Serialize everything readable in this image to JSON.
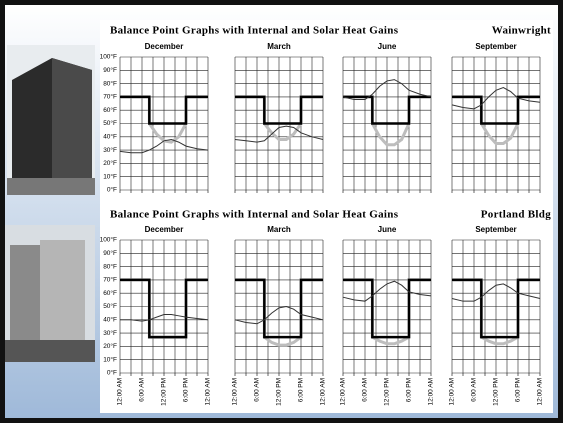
{
  "panels": [
    {
      "title": "Balance Point Graphs with Internal and Solar Heat Gains",
      "building": "Wainwright"
    },
    {
      "title": "Balance Point Graphs with Internal and Solar Heat Gains",
      "building": "Portland Bldg"
    }
  ],
  "chart_data": [
    {
      "type": "line",
      "title": "December",
      "x": [
        0,
        3,
        6,
        8,
        8,
        10,
        12,
        14,
        16,
        18,
        18,
        21,
        24
      ],
      "xlim": [
        0,
        24
      ],
      "ylim": [
        0,
        100
      ],
      "xticks": [
        0,
        3,
        6,
        9,
        12,
        15,
        18,
        21,
        24
      ],
      "yticks": [
        {
          "value": 0,
          "label": "0°F"
        },
        {
          "value": 10,
          "label": "10°F"
        },
        {
          "value": 20,
          "label": "20°F"
        },
        {
          "value": 30,
          "label": "30°F"
        },
        {
          "value": 40,
          "label": "40°F"
        },
        {
          "value": 50,
          "label": "50°F"
        },
        {
          "value": 60,
          "label": "60°F"
        },
        {
          "value": 70,
          "label": "70°F"
        },
        {
          "value": 80,
          "label": "80°F"
        },
        {
          "value": 90,
          "label": "90°F"
        },
        {
          "value": 100,
          "label": "100°F"
        }
      ],
      "series": [
        {
          "color": "#bdbdbd",
          "values": [
            70,
            70,
            70,
            70,
            50,
            42,
            37,
            36,
            40,
            50,
            70,
            70,
            70
          ]
        },
        {
          "color": "#000000",
          "values": [
            70,
            70,
            70,
            70,
            50,
            50,
            50,
            50,
            50,
            50,
            70,
            70,
            70
          ]
        },
        {
          "color": "#333333",
          "values": [
            29,
            28,
            28,
            30,
            30,
            33,
            37,
            38,
            36,
            33,
            33,
            31,
            30
          ]
        }
      ]
    },
    {
      "type": "line",
      "title": "March",
      "x": [
        0,
        3,
        6,
        8,
        8,
        10,
        12,
        14,
        16,
        18,
        18,
        21,
        24
      ],
      "xlim": [
        0,
        24
      ],
      "ylim": [
        0,
        100
      ],
      "xticks": [
        0,
        3,
        6,
        9,
        12,
        15,
        18,
        21,
        24
      ],
      "yticks": [
        0,
        10,
        20,
        30,
        40,
        50,
        60,
        70,
        80,
        90,
        100
      ],
      "series": [
        {
          "color": "#bdbdbd",
          "values": [
            70,
            70,
            70,
            70,
            50,
            43,
            38,
            38,
            42,
            50,
            70,
            70,
            70
          ]
        },
        {
          "color": "#000000",
          "values": [
            70,
            70,
            70,
            70,
            50,
            50,
            50,
            50,
            50,
            50,
            70,
            70,
            70
          ]
        },
        {
          "color": "#333333",
          "values": [
            38,
            37,
            36,
            37,
            37,
            42,
            47,
            48,
            47,
            43,
            43,
            40,
            38
          ]
        }
      ]
    },
    {
      "type": "line",
      "title": "June",
      "x": [
        0,
        3,
        6,
        8,
        8,
        10,
        12,
        14,
        16,
        18,
        18,
        21,
        24
      ],
      "xlim": [
        0,
        24
      ],
      "ylim": [
        0,
        100
      ],
      "xticks": [
        0,
        3,
        6,
        9,
        12,
        15,
        18,
        21,
        24
      ],
      "yticks": [
        0,
        10,
        20,
        30,
        40,
        50,
        60,
        70,
        80,
        90,
        100
      ],
      "series": [
        {
          "color": "#bdbdbd",
          "values": [
            70,
            70,
            70,
            70,
            50,
            40,
            34,
            34,
            38,
            50,
            70,
            70,
            70
          ]
        },
        {
          "color": "#000000",
          "values": [
            70,
            70,
            70,
            70,
            50,
            50,
            50,
            50,
            50,
            50,
            70,
            70,
            70
          ]
        },
        {
          "color": "#333333",
          "values": [
            70,
            68,
            68,
            72,
            72,
            78,
            82,
            83,
            80,
            75,
            75,
            72,
            70
          ]
        }
      ]
    },
    {
      "type": "line",
      "title": "September",
      "x": [
        0,
        3,
        6,
        8,
        8,
        10,
        12,
        14,
        16,
        18,
        18,
        21,
        24
      ],
      "xlim": [
        0,
        24
      ],
      "ylim": [
        0,
        100
      ],
      "xticks": [
        0,
        3,
        6,
        9,
        12,
        15,
        18,
        21,
        24
      ],
      "yticks": [
        0,
        10,
        20,
        30,
        40,
        50,
        60,
        70,
        80,
        90,
        100
      ],
      "series": [
        {
          "color": "#bdbdbd",
          "values": [
            70,
            70,
            70,
            70,
            50,
            41,
            35,
            35,
            39,
            50,
            70,
            70,
            70
          ]
        },
        {
          "color": "#000000",
          "values": [
            70,
            70,
            70,
            70,
            50,
            50,
            50,
            50,
            50,
            50,
            70,
            70,
            70
          ]
        },
        {
          "color": "#333333",
          "values": [
            64,
            62,
            61,
            64,
            64,
            70,
            75,
            77,
            74,
            69,
            69,
            67,
            66
          ]
        }
      ]
    },
    {
      "type": "line",
      "title": "December",
      "x": [
        0,
        3,
        6,
        8,
        8,
        10,
        12,
        14,
        16,
        18,
        18,
        21,
        24
      ],
      "xlim": [
        0,
        24
      ],
      "ylim": [
        0,
        100
      ],
      "xticks": [
        {
          "value": 0,
          "label": "12:00 AM"
        },
        3,
        {
          "value": 6,
          "label": "6:00 AM"
        },
        9,
        {
          "value": 12,
          "label": "12:00 PM"
        },
        15,
        {
          "value": 18,
          "label": "6:00 PM"
        },
        21,
        {
          "value": 24,
          "label": "12:00 AM"
        }
      ],
      "yticks": [
        {
          "value": 0,
          "label": "0°F"
        },
        {
          "value": 10,
          "label": "10°F"
        },
        {
          "value": 20,
          "label": "20°F"
        },
        {
          "value": 30,
          "label": "30°F"
        },
        {
          "value": 40,
          "label": "40°F"
        },
        {
          "value": 50,
          "label": "50°F"
        },
        {
          "value": 60,
          "label": "60°F"
        },
        {
          "value": 70,
          "label": "70°F"
        },
        {
          "value": 80,
          "label": "80°F"
        },
        {
          "value": 90,
          "label": "90°F"
        },
        {
          "value": 100,
          "label": "100°F"
        }
      ],
      "series": [
        {
          "color": "#bdbdbd",
          "values": [
            70,
            70,
            70,
            70,
            27,
            27,
            27,
            27,
            27,
            27,
            70,
            70,
            70
          ]
        },
        {
          "color": "#000000",
          "values": [
            70,
            70,
            70,
            70,
            27,
            27,
            27,
            27,
            27,
            27,
            70,
            70,
            70
          ]
        },
        {
          "color": "#333333",
          "values": [
            40,
            40,
            39,
            40,
            40,
            42,
            44,
            44,
            43,
            42,
            42,
            41,
            40
          ]
        }
      ]
    },
    {
      "type": "line",
      "title": "March",
      "x": [
        0,
        3,
        6,
        8,
        8,
        10,
        12,
        14,
        16,
        18,
        18,
        21,
        24
      ],
      "xlim": [
        0,
        24
      ],
      "ylim": [
        0,
        100
      ],
      "xticks": [
        {
          "value": 0,
          "label": "12:00 AM"
        },
        3,
        {
          "value": 6,
          "label": "6:00 AM"
        },
        9,
        {
          "value": 12,
          "label": "12:00 PM"
        },
        15,
        {
          "value": 18,
          "label": "6:00 PM"
        },
        21,
        {
          "value": 24,
          "label": "12:00 AM"
        }
      ],
      "yticks": [
        0,
        10,
        20,
        30,
        40,
        50,
        60,
        70,
        80,
        90,
        100
      ],
      "series": [
        {
          "color": "#bdbdbd",
          "values": [
            70,
            70,
            70,
            70,
            27,
            23,
            21,
            21,
            23,
            27,
            70,
            70,
            70
          ]
        },
        {
          "color": "#000000",
          "values": [
            70,
            70,
            70,
            70,
            27,
            27,
            27,
            27,
            27,
            27,
            70,
            70,
            70
          ]
        },
        {
          "color": "#333333",
          "values": [
            40,
            38,
            37,
            40,
            40,
            45,
            49,
            50,
            48,
            44,
            44,
            42,
            40
          ]
        }
      ]
    },
    {
      "type": "line",
      "title": "June",
      "x": [
        0,
        3,
        6,
        8,
        8,
        10,
        12,
        14,
        16,
        18,
        18,
        21,
        24
      ],
      "xlim": [
        0,
        24
      ],
      "ylim": [
        0,
        100
      ],
      "xticks": [
        {
          "value": 0,
          "label": "12:00 AM"
        },
        3,
        {
          "value": 6,
          "label": "6:00 AM"
        },
        9,
        {
          "value": 12,
          "label": "12:00 PM"
        },
        15,
        {
          "value": 18,
          "label": "6:00 PM"
        },
        21,
        {
          "value": 24,
          "label": "12:00 AM"
        }
      ],
      "yticks": [
        0,
        10,
        20,
        30,
        40,
        50,
        60,
        70,
        80,
        90,
        100
      ],
      "series": [
        {
          "color": "#bdbdbd",
          "values": [
            70,
            70,
            70,
            70,
            27,
            24,
            22,
            22,
            24,
            27,
            70,
            70,
            70
          ]
        },
        {
          "color": "#000000",
          "values": [
            70,
            70,
            70,
            70,
            27,
            27,
            27,
            27,
            27,
            27,
            70,
            70,
            70
          ]
        },
        {
          "color": "#333333",
          "values": [
            57,
            55,
            54,
            58,
            58,
            63,
            67,
            69,
            66,
            61,
            61,
            59,
            58
          ]
        }
      ]
    },
    {
      "type": "line",
      "title": "September",
      "x": [
        0,
        3,
        6,
        8,
        8,
        10,
        12,
        14,
        16,
        18,
        18,
        21,
        24
      ],
      "xlim": [
        0,
        24
      ],
      "ylim": [
        0,
        100
      ],
      "xticks": [
        {
          "value": 0,
          "label": "12:00 AM"
        },
        3,
        {
          "value": 6,
          "label": "6:00 AM"
        },
        9,
        {
          "value": 12,
          "label": "12:00 PM"
        },
        15,
        {
          "value": 18,
          "label": "6:00 PM"
        },
        21,
        {
          "value": 24,
          "label": "12:00 AM"
        }
      ],
      "yticks": [
        0,
        10,
        20,
        30,
        40,
        50,
        60,
        70,
        80,
        90,
        100
      ],
      "series": [
        {
          "color": "#bdbdbd",
          "values": [
            70,
            70,
            70,
            70,
            27,
            24,
            22,
            22,
            24,
            27,
            70,
            70,
            70
          ]
        },
        {
          "color": "#000000",
          "values": [
            70,
            70,
            70,
            70,
            27,
            27,
            27,
            27,
            27,
            27,
            70,
            70,
            70
          ]
        },
        {
          "color": "#333333",
          "values": [
            56,
            54,
            54,
            57,
            57,
            62,
            66,
            67,
            64,
            60,
            60,
            58,
            56
          ]
        }
      ]
    }
  ]
}
